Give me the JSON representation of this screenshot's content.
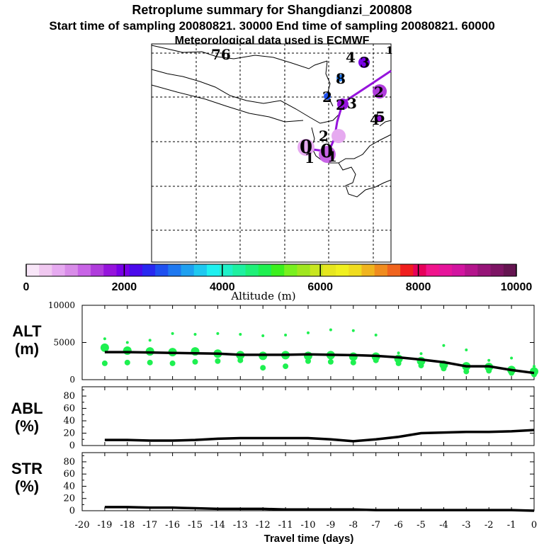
{
  "title": {
    "line1": "Retroplume summary for Shangdianzi_200808",
    "line2": "Start time of sampling 20080821. 30000     End time of sampling 20080821. 60000",
    "line3": "Meteorological data used is ECMWF"
  },
  "map": {
    "description_labels": [
      {
        "text": "76",
        "color": "#1e6ee6"
      },
      {
        "text": "4",
        "color": "#111111"
      },
      {
        "text": "3",
        "color": "#5a00b4"
      },
      {
        "text": "1",
        "color": "#1e6ee6"
      },
      {
        "text": "8",
        "color": "#1e6ee6"
      },
      {
        "text": "2",
        "color": "#8c00c8"
      },
      {
        "text": "3",
        "color": "#111111"
      },
      {
        "text": "2",
        "color": "#8c00c8"
      },
      {
        "text": "2",
        "color": "#5a00b4"
      },
      {
        "text": "4",
        "color": "#5a00b4"
      },
      {
        "text": "5",
        "color": "#8c00c8"
      },
      {
        "text": "2",
        "color": "#5a00b4"
      },
      {
        "text": "0",
        "color": "#111111"
      },
      {
        "text": "1",
        "color": "#111111"
      },
      {
        "text": "0",
        "color": "#111111"
      },
      {
        "text": "1",
        "color": "#111111"
      }
    ]
  },
  "colorbar": {
    "label": "Altitude (m)",
    "min": 0,
    "max": 10000,
    "tick_labels": [
      "0",
      "2000",
      "4000",
      "6000",
      "8000",
      "10000"
    ],
    "colors": [
      "#f8e6f8",
      "#f0c8f0",
      "#e6aaf0",
      "#d88ce8",
      "#c864e6",
      "#b03cdc",
      "#9614dc",
      "#7800e6",
      "#4b0aeb",
      "#2828f0",
      "#1e50f0",
      "#1e78f0",
      "#1ea0f0",
      "#1ec8f0",
      "#1ef0f0",
      "#1ef0c8",
      "#1ef0a0",
      "#1ef078",
      "#1ef050",
      "#3cf01e",
      "#78f01e",
      "#a0e61e",
      "#c8e61e",
      "#e6e61e",
      "#f0f01e",
      "#f0dc1e",
      "#f0b41e",
      "#f08c1e",
      "#f0641e",
      "#f01e1e",
      "#e6005a",
      "#f0148c",
      "#e6149b",
      "#d214a0",
      "#b4148c",
      "#961478",
      "#7d1464",
      "#641450"
    ]
  },
  "chart_data": [
    {
      "type": "line",
      "panel": "ALT",
      "ylabel": "ALT\n(m)",
      "ylabel_line1": "ALT",
      "ylabel_line2": "(m)",
      "x": [
        -19,
        -18,
        -17,
        -16,
        -15,
        -14,
        -13,
        -12,
        -11,
        -10,
        -9,
        -8,
        -7,
        -6,
        -5,
        -4,
        -3,
        -2,
        -1,
        0
      ],
      "ylim": [
        0,
        10000
      ],
      "yticks": [
        "0",
        "5000",
        "10000"
      ],
      "series": [
        {
          "name": "median altitude",
          "values": [
            3700,
            3700,
            3650,
            3600,
            3550,
            3500,
            3350,
            3350,
            3350,
            3400,
            3350,
            3300,
            3200,
            3000,
            2700,
            2350,
            1800,
            1800,
            1300,
            900
          ]
        }
      ],
      "scatter": [
        {
          "x": -19,
          "upper": 5500,
          "mid": 4300,
          "lower": 2200
        },
        {
          "x": -18,
          "upper": 5000,
          "mid": 3900,
          "lower": 2300
        },
        {
          "x": -17,
          "upper": 5300,
          "mid": 3800,
          "lower": 2300
        },
        {
          "x": -16,
          "upper": 6200,
          "mid": 3700,
          "lower": 2200
        },
        {
          "x": -15,
          "upper": 6100,
          "mid": 3800,
          "lower": 2400
        },
        {
          "x": -14,
          "upper": 6200,
          "mid": 3500,
          "lower": 2500
        },
        {
          "x": -13,
          "upper": 6100,
          "mid": 3300,
          "lower": 2600
        },
        {
          "x": -12,
          "upper": 5900,
          "mid": 3200,
          "lower": 1600
        },
        {
          "x": -11,
          "upper": 6000,
          "mid": 3300,
          "lower": 1800
        },
        {
          "x": -10,
          "upper": 6300,
          "mid": 3200,
          "lower": 2500
        },
        {
          "x": -9,
          "upper": 6700,
          "mid": 3300,
          "lower": 2400
        },
        {
          "x": -8,
          "upper": 6600,
          "mid": 3100,
          "lower": 2300
        },
        {
          "x": -7,
          "upper": 6000,
          "mid": 3100,
          "lower": 2600
        },
        {
          "x": -6,
          "upper": 3600,
          "mid": 2800,
          "lower": 2200
        },
        {
          "x": -5,
          "upper": 3500,
          "mid": 2500,
          "lower": 1900
        },
        {
          "x": -4,
          "upper": 4600,
          "mid": 2000,
          "lower": 1500
        },
        {
          "x": -3,
          "upper": 4000,
          "mid": 1800,
          "lower": 1100
        },
        {
          "x": -2,
          "upper": 2600,
          "mid": 1700,
          "lower": 1200
        },
        {
          "x": -1,
          "upper": 2900,
          "mid": 1300,
          "lower": 900
        },
        {
          "x": 0,
          "upper": 1800,
          "mid": 1100,
          "lower": 700
        }
      ]
    },
    {
      "type": "line",
      "panel": "ABL",
      "ylabel_line1": "ABL",
      "ylabel_line2": "(%)",
      "ylim": [
        0,
        95
      ],
      "yticks": [
        "0",
        "20",
        "40",
        "60",
        "80"
      ],
      "x": [
        -19,
        -18,
        -17,
        -16,
        -15,
        -14,
        -13,
        -12,
        -11,
        -10,
        -9,
        -8,
        -7,
        -6,
        -5,
        -4,
        -3,
        -2,
        -1,
        0
      ],
      "series": [
        {
          "name": "ABL fraction",
          "values": [
            9,
            9,
            8,
            8,
            9,
            11,
            12,
            12,
            12,
            12,
            10,
            7,
            10,
            14,
            20,
            21,
            22,
            22,
            23,
            25
          ]
        }
      ]
    },
    {
      "type": "line",
      "panel": "STR",
      "ylabel_line1": "STR",
      "ylabel_line2": "(%)",
      "ylim": [
        0,
        95
      ],
      "yticks": [
        "0",
        "20",
        "40",
        "60",
        "80"
      ],
      "x": [
        -19,
        -18,
        -17,
        -16,
        -15,
        -14,
        -13,
        -12,
        -11,
        -10,
        -9,
        -8,
        -7,
        -6,
        -5,
        -4,
        -3,
        -2,
        -1,
        0
      ],
      "xlabel": "Travel time (days)",
      "xticks": [
        "-20",
        "-19",
        "-18",
        "-17",
        "-16",
        "-15",
        "-14",
        "-13",
        "-12",
        "-11",
        "-10",
        "-9",
        "-8",
        "-7",
        "-6",
        "-5",
        "-4",
        "-3",
        "-2",
        "-1",
        "0"
      ],
      "series": [
        {
          "name": "stratospheric fraction",
          "values": [
            6,
            6,
            5,
            5,
            4,
            3,
            3,
            3,
            2,
            2,
            2,
            2,
            1,
            1,
            1,
            1,
            1,
            1,
            1,
            0
          ]
        }
      ]
    }
  ]
}
